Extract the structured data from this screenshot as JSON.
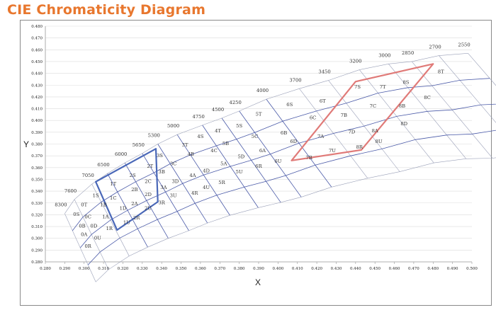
{
  "title": "CIE Chromaticity Diagram",
  "chart_data": {
    "type": "scatter",
    "xlabel": "X",
    "ylabel": "Y",
    "xlim": [
      0.28,
      0.5
    ],
    "ylim": [
      0.28,
      0.48
    ],
    "x_ticks": [
      "0.280",
      "0.290",
      "0.300",
      "0.310",
      "0.320",
      "0.330",
      "0.340",
      "0.350",
      "0.360",
      "0.370",
      "0.380",
      "0.390",
      "0.400",
      "0.410",
      "0.420",
      "0.430",
      "0.440",
      "0.450",
      "0.460",
      "0.470",
      "0.480",
      "0.490",
      "0.500"
    ],
    "y_ticks": [
      "0.280",
      "0.290",
      "0.300",
      "0.310",
      "0.320",
      "0.330",
      "0.340",
      "0.350",
      "0.360",
      "0.370",
      "0.380",
      "0.390",
      "0.400",
      "0.410",
      "0.420",
      "0.430",
      "0.440",
      "0.450",
      "0.460",
      "0.470",
      "0.480"
    ],
    "grid": "horizontal",
    "cct_labels": [
      {
        "text": "8300",
        "x": 0.288,
        "y": 0.327
      },
      {
        "text": "7600",
        "x": 0.293,
        "y": 0.339
      },
      {
        "text": "7050",
        "x": 0.302,
        "y": 0.352
      },
      {
        "text": "6500",
        "x": 0.31,
        "y": 0.361
      },
      {
        "text": "6000",
        "x": 0.319,
        "y": 0.37
      },
      {
        "text": "5650",
        "x": 0.328,
        "y": 0.378
      },
      {
        "text": "5300",
        "x": 0.336,
        "y": 0.386
      },
      {
        "text": "5000",
        "x": 0.346,
        "y": 0.394
      },
      {
        "text": "4750",
        "x": 0.359,
        "y": 0.402
      },
      {
        "text": "4500",
        "x": 0.369,
        "y": 0.408
      },
      {
        "text": "4250",
        "x": 0.378,
        "y": 0.414
      },
      {
        "text": "4000",
        "x": 0.392,
        "y": 0.424
      },
      {
        "text": "3700",
        "x": 0.409,
        "y": 0.433
      },
      {
        "text": "3450",
        "x": 0.424,
        "y": 0.44
      },
      {
        "text": "3200",
        "x": 0.44,
        "y": 0.449
      },
      {
        "text": "3000",
        "x": 0.455,
        "y": 0.454
      },
      {
        "text": "2850",
        "x": 0.467,
        "y": 0.456
      },
      {
        "text": "2700",
        "x": 0.481,
        "y": 0.461
      },
      {
        "text": "2550",
        "x": 0.496,
        "y": 0.463
      }
    ],
    "bins": [
      {
        "text": "0R",
        "x": 0.302,
        "y": 0.292
      },
      {
        "text": "0U",
        "x": 0.307,
        "y": 0.299
      },
      {
        "text": "0A",
        "x": 0.3,
        "y": 0.302
      },
      {
        "text": "0D",
        "x": 0.305,
        "y": 0.309
      },
      {
        "text": "0B",
        "x": 0.299,
        "y": 0.309
      },
      {
        "text": "0C",
        "x": 0.302,
        "y": 0.317
      },
      {
        "text": "0S",
        "x": 0.296,
        "y": 0.319
      },
      {
        "text": "0T",
        "x": 0.3,
        "y": 0.327
      },
      {
        "text": "1R",
        "x": 0.313,
        "y": 0.307
      },
      {
        "text": "1A",
        "x": 0.311,
        "y": 0.317
      },
      {
        "text": "1B",
        "x": 0.31,
        "y": 0.327
      },
      {
        "text": "1C",
        "x": 0.315,
        "y": 0.333
      },
      {
        "text": "1S",
        "x": 0.306,
        "y": 0.335
      },
      {
        "text": "1T",
        "x": 0.315,
        "y": 0.345
      },
      {
        "text": "1U",
        "x": 0.322,
        "y": 0.312
      },
      {
        "text": "1D",
        "x": 0.32,
        "y": 0.324
      },
      {
        "text": "2R",
        "x": 0.327,
        "y": 0.316
      },
      {
        "text": "2A",
        "x": 0.326,
        "y": 0.328
      },
      {
        "text": "2U",
        "x": 0.333,
        "y": 0.324
      },
      {
        "text": "2D",
        "x": 0.333,
        "y": 0.336
      },
      {
        "text": "2B",
        "x": 0.326,
        "y": 0.34
      },
      {
        "text": "2C",
        "x": 0.333,
        "y": 0.347
      },
      {
        "text": "2S",
        "x": 0.325,
        "y": 0.352
      },
      {
        "text": "2T",
        "x": 0.334,
        "y": 0.36
      },
      {
        "text": "3R",
        "x": 0.34,
        "y": 0.329
      },
      {
        "text": "3U",
        "x": 0.346,
        "y": 0.335
      },
      {
        "text": "3A",
        "x": 0.341,
        "y": 0.342
      },
      {
        "text": "3D",
        "x": 0.347,
        "y": 0.347
      },
      {
        "text": "3B",
        "x": 0.34,
        "y": 0.355
      },
      {
        "text": "3C",
        "x": 0.346,
        "y": 0.362
      },
      {
        "text": "3S",
        "x": 0.339,
        "y": 0.369
      },
      {
        "text": "3T",
        "x": 0.352,
        "y": 0.378
      },
      {
        "text": "4R",
        "x": 0.357,
        "y": 0.337
      },
      {
        "text": "4U",
        "x": 0.363,
        "y": 0.342
      },
      {
        "text": "4A",
        "x": 0.356,
        "y": 0.352
      },
      {
        "text": "4D",
        "x": 0.363,
        "y": 0.356
      },
      {
        "text": "4B",
        "x": 0.355,
        "y": 0.37
      },
      {
        "text": "4C",
        "x": 0.367,
        "y": 0.373
      },
      {
        "text": "4S",
        "x": 0.36,
        "y": 0.385
      },
      {
        "text": "4T",
        "x": 0.369,
        "y": 0.39
      },
      {
        "text": "5R",
        "x": 0.371,
        "y": 0.346
      },
      {
        "text": "5U",
        "x": 0.38,
        "y": 0.355
      },
      {
        "text": "5A",
        "x": 0.372,
        "y": 0.362
      },
      {
        "text": "5D",
        "x": 0.381,
        "y": 0.368
      },
      {
        "text": "5B",
        "x": 0.373,
        "y": 0.379
      },
      {
        "text": "5C",
        "x": 0.388,
        "y": 0.385
      },
      {
        "text": "5S",
        "x": 0.38,
        "y": 0.394
      },
      {
        "text": "5T",
        "x": 0.39,
        "y": 0.404
      },
      {
        "text": "6R",
        "x": 0.39,
        "y": 0.36
      },
      {
        "text": "6U",
        "x": 0.4,
        "y": 0.364
      },
      {
        "text": "6A",
        "x": 0.392,
        "y": 0.373
      },
      {
        "text": "6D",
        "x": 0.408,
        "y": 0.381
      },
      {
        "text": "6B",
        "x": 0.403,
        "y": 0.388
      },
      {
        "text": "6C",
        "x": 0.418,
        "y": 0.401
      },
      {
        "text": "6S",
        "x": 0.406,
        "y": 0.412
      },
      {
        "text": "6T",
        "x": 0.423,
        "y": 0.415
      },
      {
        "text": "7R",
        "x": 0.416,
        "y": 0.367
      },
      {
        "text": "7U",
        "x": 0.428,
        "y": 0.373
      },
      {
        "text": "7A",
        "x": 0.422,
        "y": 0.385
      },
      {
        "text": "7D",
        "x": 0.438,
        "y": 0.389
      },
      {
        "text": "7B",
        "x": 0.434,
        "y": 0.403
      },
      {
        "text": "7C",
        "x": 0.449,
        "y": 0.411
      },
      {
        "text": "7S",
        "x": 0.441,
        "y": 0.427
      },
      {
        "text": "7T",
        "x": 0.454,
        "y": 0.427
      },
      {
        "text": "8R",
        "x": 0.442,
        "y": 0.376
      },
      {
        "text": "8U",
        "x": 0.452,
        "y": 0.381
      },
      {
        "text": "8A",
        "x": 0.45,
        "y": 0.39
      },
      {
        "text": "8D",
        "x": 0.465,
        "y": 0.396
      },
      {
        "text": "8B",
        "x": 0.464,
        "y": 0.411
      },
      {
        "text": "8C",
        "x": 0.477,
        "y": 0.418
      },
      {
        "text": "8S",
        "x": 0.466,
        "y": 0.431
      },
      {
        "text": "8T",
        "x": 0.484,
        "y": 0.44
      }
    ],
    "highlight_colors": {
      "blue": "#4a68b8",
      "red": "#e07a78"
    },
    "highlight_regions": [
      {
        "name": "blue",
        "points": [
          [
            0.306,
            0.348
          ],
          [
            0.337,
            0.376
          ],
          [
            0.338,
            0.331
          ],
          [
            0.317,
            0.307
          ]
        ]
      },
      {
        "name": "red",
        "points": [
          [
            0.44,
            0.433
          ],
          [
            0.48,
            0.448
          ],
          [
            0.443,
            0.375
          ],
          [
            0.407,
            0.366
          ]
        ]
      }
    ]
  }
}
